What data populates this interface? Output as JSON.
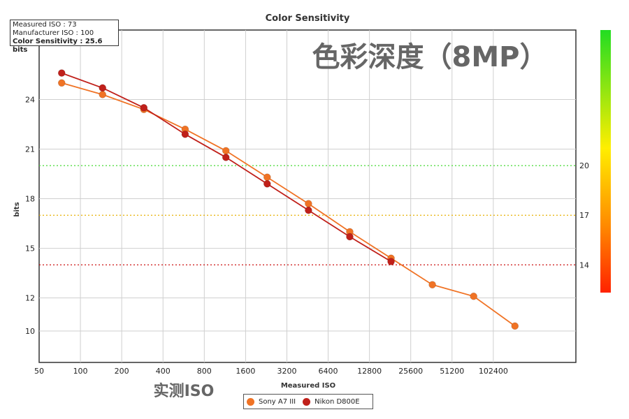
{
  "chart_data": {
    "type": "line",
    "title": "Color Sensitivity",
    "xlabel": "Measured ISO",
    "ylabel": "bits",
    "x_scale": "log2",
    "x_ticks": [
      "50",
      "100",
      "200",
      "400",
      "800",
      "1600",
      "3200",
      "6400",
      "12800",
      "25600",
      "51200",
      "102400"
    ],
    "y_ticks": [
      10,
      12,
      15,
      18,
      21,
      24
    ],
    "xlim": [
      50,
      409600
    ],
    "ylim": [
      8.1,
      28.2
    ],
    "grid": true,
    "legend_position": "bottom-center",
    "reference_lines": [
      {
        "value": 20,
        "label": "20",
        "color": "#55dd44"
      },
      {
        "value": 17,
        "label": "17",
        "color": "#e8b000"
      },
      {
        "value": 14,
        "label": "14",
        "color": "#cc1111"
      }
    ],
    "series": [
      {
        "name": "Sony A7 III",
        "color": "#f07325",
        "x": [
          73,
          145,
          290,
          580,
          1150,
          2300,
          4600,
          9200,
          18400,
          36800,
          73600,
          147200
        ],
        "y": [
          25.0,
          24.3,
          23.4,
          22.2,
          20.9,
          19.3,
          17.7,
          16.0,
          14.4,
          12.8,
          12.1,
          10.3
        ]
      },
      {
        "name": "Nikon D800E",
        "color": "#c0201a",
        "x": [
          73,
          145,
          290,
          580,
          1150,
          2300,
          4600,
          9200,
          18400
        ],
        "y": [
          25.6,
          24.7,
          23.5,
          21.9,
          20.5,
          18.9,
          17.3,
          15.7,
          14.2
        ]
      }
    ],
    "color_scale": {
      "top": "#22dd22",
      "middle": "#ffee00",
      "bottom": "#ff2200"
    }
  },
  "info_box": {
    "line1": "Measured ISO : 73",
    "line2": "Manufacturer ISO : 100",
    "line3": "Color Sensitivity : 25.6 bits"
  },
  "overlay": {
    "title_cn": "色彩深度（8MP）",
    "xlabel_cn": "实测ISO"
  }
}
